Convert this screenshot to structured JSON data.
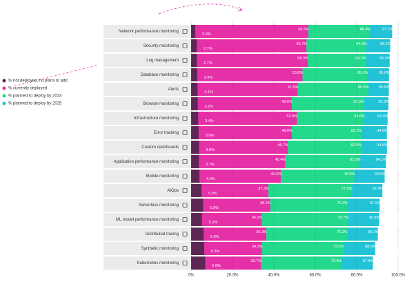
{
  "chart_data": {
    "type": "overlap-bar",
    "categories": [
      "Network performance monitoring",
      "Security monitoring",
      "Log management",
      "Database monitoring",
      "Alerts",
      "Browser monitoring",
      "Infrastructure monitoring",
      "Error tracking",
      "Custom dashboards",
      "Application performance monitoring",
      "Mobile monitoring",
      "AIOps",
      "Serverless monitoring",
      "ML model performance monitoring",
      "Distributed tracing",
      "Synthetic monitoring",
      "Kubernetes monitoring"
    ],
    "series": [
      {
        "name": "% planned to deploy by 2025",
        "color": "#22c3d6",
        "values": [
          97.1,
          96.2,
          95.9,
          95.6,
          95.5,
          95.3,
          94.9,
          94.6,
          94.6,
          94.1,
          93.5,
          92.4,
          91.1,
          90.8,
          90.2,
          88.9,
          87.8
        ],
        "value_labels": [
          "97.1%",
          "96.2%",
          "95.9%",
          "95.6%",
          "95.5%",
          "95.3%",
          "94.9%",
          "94.6%",
          "94.6%",
          "94.1%",
          "93.5%",
          "92.4%",
          "91.1%",
          "90.8%",
          "90.2%",
          "88.9%",
          "87.8%"
        ]
      },
      {
        "name": "% planned to deploy by 2023",
        "color": "#23d98b",
        "values": [
          86.4,
          84.6,
          84.2,
          85.1,
          85.5,
          83.3,
          83.6,
          82.1,
          82.0,
          81.5,
          78.8,
          77.5,
          75.3,
          75.7,
          75.2,
          73.5,
          72.4
        ],
        "value_labels": [
          "86.4%",
          "84.6%",
          "84.2%",
          "85.1%",
          "85.5%",
          "83.3%",
          "83.6%",
          "82.1%",
          "82.0%",
          "81.5%",
          "78.8%",
          "77.5%",
          "75.3%",
          "75.7%",
          "75.2%",
          "73.5%",
          "72.4%"
        ]
      },
      {
        "name": "% currently deployed",
        "color": "#e630a8",
        "values": [
          56.6,
          55.7,
          56.3,
          53.8,
          51.5,
          48.6,
          51.0,
          48.6,
          46.7,
          45.4,
          43.3,
          37.3,
          38.2,
          34.1,
          36.3,
          34.2,
          33.7
        ],
        "value_labels": [
          "56.6%",
          "55.7%",
          "56.3%",
          "53.8%",
          "51.5%",
          "48.6%",
          "51.0%",
          "48.6%",
          "46.7%",
          "45.4%",
          "43.3%",
          "37.3%",
          "38.2%",
          "34.1%",
          "36.3%",
          "34.2%",
          "33.7%"
        ]
      },
      {
        "name": "% not deployed, no plans to add",
        "color": "#5c2753",
        "values": [
          2.0,
          2.7,
          2.7,
          2.9,
          3.1,
          3.2,
          3.4,
          3.6,
          3.8,
          3.7,
          4.0,
          5.0,
          5.8,
          5.2,
          6.0,
          6.3,
          6.8
        ],
        "value_labels": [
          "2.0%",
          "2.7%",
          "2.7%",
          "2.9%",
          "3.1%",
          "3.2%",
          "3.4%",
          "3.6%",
          "3.8%",
          "3.7%",
          "4.0%",
          "5.0%",
          "5.8%",
          "5.2%",
          "6.0%",
          "6.3%",
          "6.8%"
        ]
      }
    ],
    "xlim": [
      0,
      100
    ],
    "xticks": [
      {
        "value": 0,
        "label": "0%"
      },
      {
        "value": 20,
        "label": "20.0%"
      },
      {
        "value": 40,
        "label": "40.0%"
      },
      {
        "value": 60,
        "label": "60.0%"
      },
      {
        "value": 80,
        "label": "80.0%"
      },
      {
        "value": 100,
        "label": "100.0%"
      }
    ],
    "grid": true
  }
}
